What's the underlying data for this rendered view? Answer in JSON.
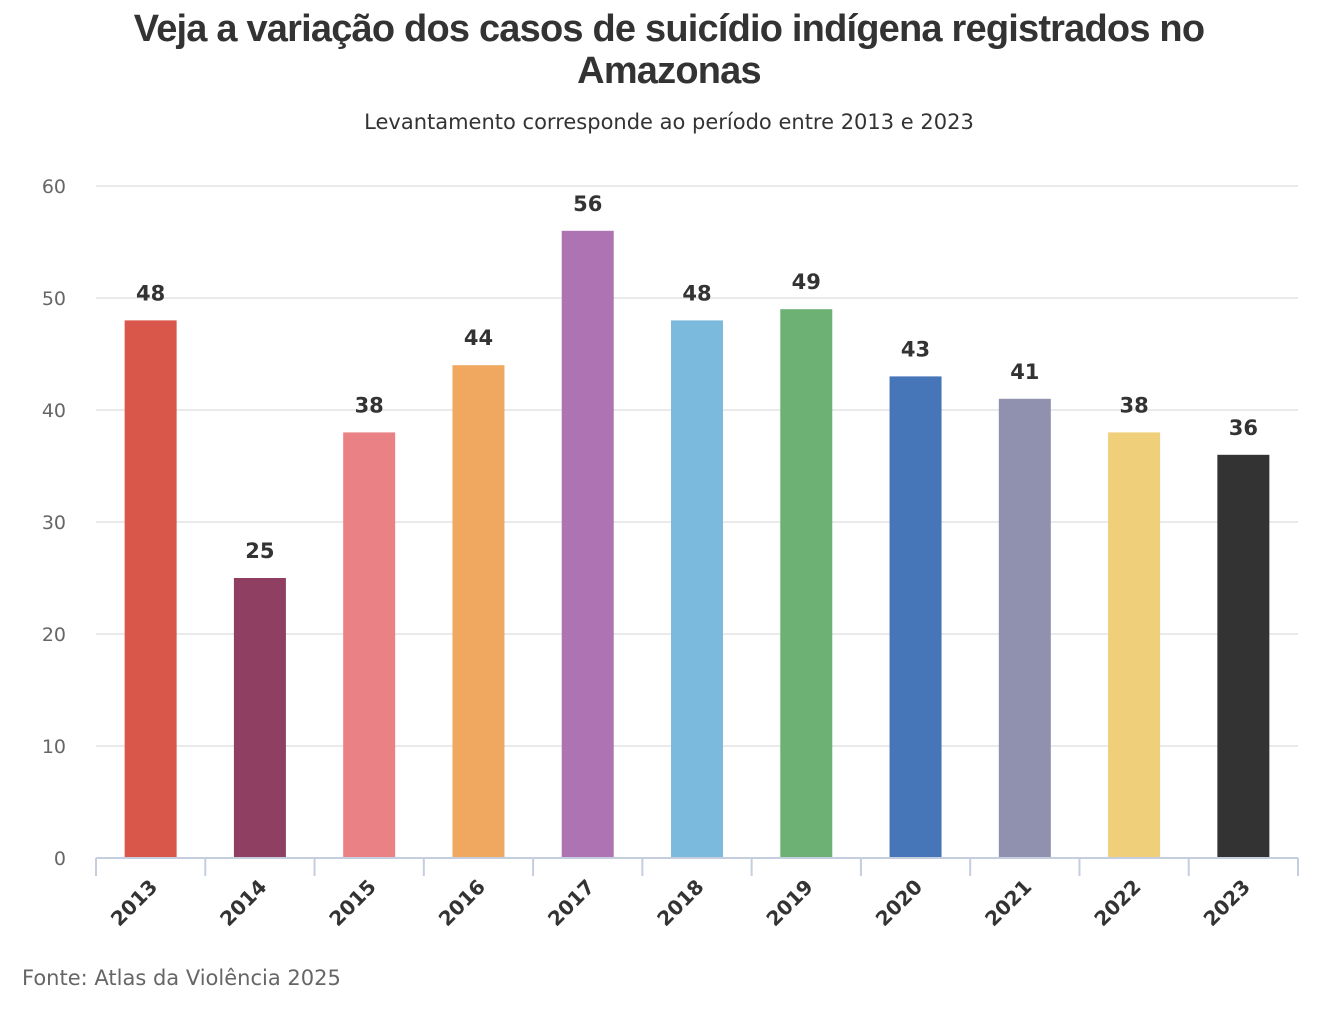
{
  "chart_data": {
    "type": "bar",
    "title": "Veja a variação dos casos de suicídio indígena registrados no Amazonas",
    "subtitle": "Levantamento corresponde ao período entre 2013 e 2023",
    "categories": [
      "2013",
      "2014",
      "2015",
      "2016",
      "2017",
      "2018",
      "2019",
      "2020",
      "2021",
      "2022",
      "2023"
    ],
    "values": [
      48,
      25,
      38,
      44,
      56,
      48,
      49,
      43,
      41,
      38,
      36
    ],
    "colors": [
      "#d9574a",
      "#8e3f62",
      "#ea8184",
      "#f0a75f",
      "#ad73b3",
      "#7bbadc",
      "#6db274",
      "#4676b8",
      "#9091af",
      "#f0cf7a",
      "#333333"
    ],
    "ylim": [
      0,
      60
    ],
    "yticks": [
      0,
      10,
      20,
      30,
      40,
      50,
      60
    ],
    "grid": true,
    "data_labels": true,
    "legend": "none",
    "xlabel": "",
    "ylabel": "",
    "source": "Fonte: Atlas da Violência 2025"
  }
}
